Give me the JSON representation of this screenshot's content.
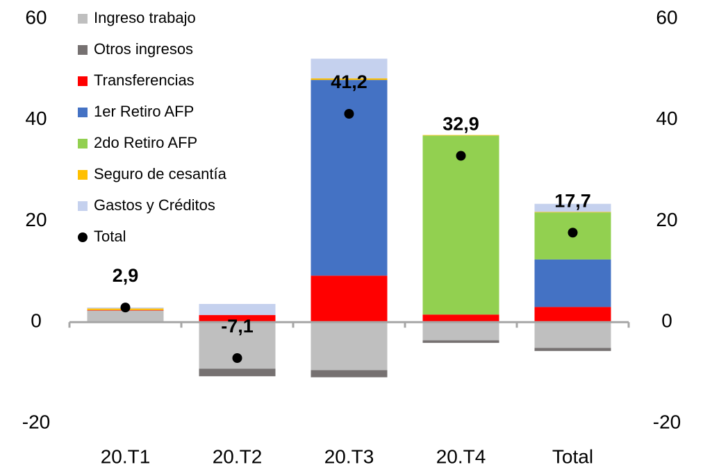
{
  "chart_data": {
    "type": "bar",
    "categories": [
      "20.T1",
      "20.T2",
      "20.T3",
      "20.T4",
      "Total"
    ],
    "series": [
      {
        "name": "Ingreso trabajo",
        "color": "#bfbfbf",
        "values": [
          2.3,
          -9.2,
          -9.5,
          -3.6,
          -5.1
        ]
      },
      {
        "name": "Otros ingresos",
        "color": "#767171",
        "values": [
          0,
          -1.5,
          -1.4,
          -0.5,
          -0.6
        ]
      },
      {
        "name": "Transferencias",
        "color": "#ff0000",
        "values": [
          0.1,
          1.4,
          9.2,
          1.5,
          3.0
        ]
      },
      {
        "name": "1er Retiro AFP",
        "color": "#4472c4",
        "values": [
          0,
          0,
          38.7,
          0,
          9.4
        ]
      },
      {
        "name": "2do Retiro AFP",
        "color": "#92d050",
        "values": [
          0,
          0,
          0,
          35.4,
          9.3
        ]
      },
      {
        "name": "Seguro de cesantía",
        "color": "#ffc000",
        "values": [
          0.3,
          0,
          0.3,
          0.1,
          0.1
        ]
      },
      {
        "name": "Gastos y Créditos",
        "color": "#c5d1ee",
        "values": [
          0.2,
          2.2,
          3.9,
          0,
          1.6
        ]
      }
    ],
    "total": {
      "name": "Total",
      "color": "#000000",
      "values": [
        2.9,
        -7.1,
        41.2,
        32.9,
        17.7
      ],
      "value_labels": [
        "2,9",
        "-7,1",
        "41,2",
        "32,9",
        "17,7"
      ]
    },
    "ylim": [
      -20,
      60
    ],
    "yticks": [
      -20,
      0,
      20,
      40,
      60
    ],
    "y2lim": [
      -20,
      60
    ],
    "y2ticks": [
      -20,
      0,
      20,
      40,
      60
    ],
    "legend": "upper left"
  }
}
